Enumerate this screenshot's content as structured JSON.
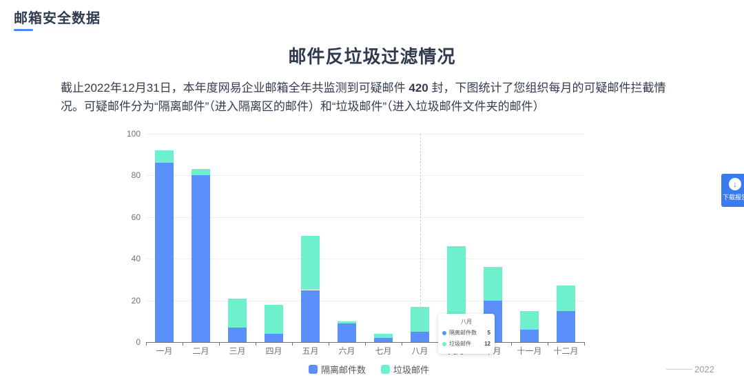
{
  "header": {
    "section_title": "邮箱安全数据"
  },
  "main": {
    "title": "邮件反垃圾过滤情况",
    "desc_part1": "截止2022年12月31日，本年度网易企业邮箱全年共监测到可疑邮件 ",
    "desc_count": "420",
    "desc_part2": " 封，下图统计了您组织每月的可疑邮件拦截情况。可疑邮件分为“隔离邮件”（进入隔离区的邮件）和“垃圾邮件”（进入垃圾邮件文件夹的邮件）"
  },
  "download_button": {
    "label": "下载报告",
    "icon": "download-icon"
  },
  "footer": {
    "year": "2022"
  },
  "colors": {
    "quarantine": "#5b8ff9",
    "spam": "#6ff0cd"
  },
  "tooltip": {
    "title": "八月",
    "rows": [
      {
        "name": "隔离邮件数",
        "value": "5"
      },
      {
        "name": "垃圾邮件",
        "value": "12"
      }
    ]
  },
  "chart_data": {
    "type": "bar",
    "stacked": true,
    "title": "",
    "xlabel": "",
    "ylabel": "",
    "ylim": [
      0,
      100
    ],
    "yticks": [
      "0",
      "20",
      "40",
      "60",
      "80",
      "100"
    ],
    "categories": [
      "一月",
      "二月",
      "三月",
      "四月",
      "五月",
      "六月",
      "七月",
      "八月",
      "九月",
      "十月",
      "十一月",
      "十二月"
    ],
    "series": [
      {
        "name": "隔离邮件数",
        "color": "#5b8ff9",
        "values": [
          86,
          80,
          7,
          4,
          25,
          9,
          2,
          5,
          5,
          20,
          6,
          15
        ]
      },
      {
        "name": "垃圾邮件",
        "color": "#6ff0cd",
        "values": [
          6,
          3,
          14,
          14,
          26,
          1,
          2,
          12,
          41,
          16,
          9,
          12
        ]
      }
    ],
    "legend": [
      "隔离邮件数",
      "垃圾邮件"
    ],
    "legend_position": "bottom",
    "grid": true
  }
}
